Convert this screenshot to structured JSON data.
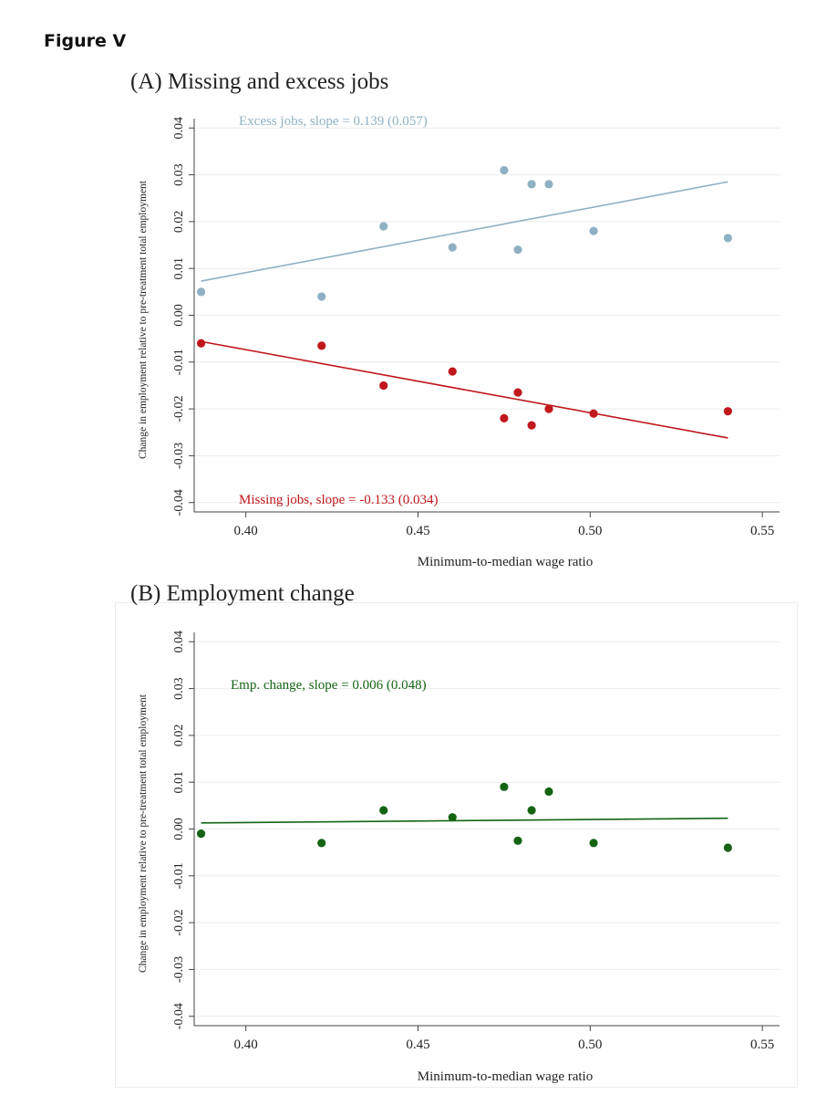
{
  "figure_label": "Figure V",
  "chart_data": [
    {
      "type": "scatter",
      "title": "(A) Missing and excess jobs",
      "xlabel": "Minimum-to-median wage ratio",
      "ylabel": "Change in employment relative to pre-treatment total employment",
      "xlim": [
        0.385,
        0.555
      ],
      "ylim": [
        -0.042,
        0.042
      ],
      "xticks": [
        0.4,
        0.45,
        0.5,
        0.55
      ],
      "xtick_labels": [
        "0.40",
        "0.45",
        "0.50",
        "0.55"
      ],
      "yticks": [
        -0.04,
        -0.03,
        -0.02,
        -0.01,
        0.0,
        0.01,
        0.02,
        0.03,
        0.04
      ],
      "ytick_labels": [
        "-0.04",
        "-0.03",
        "-0.02",
        "-0.01",
        "0.00",
        "0.01",
        "0.02",
        "0.03",
        "0.04"
      ],
      "grid": true,
      "series": [
        {
          "annotation": "Excess jobs, slope =  0.139 (0.057)",
          "color": "#8fb0c4",
          "x": [
            0.387,
            0.422,
            0.44,
            0.46,
            0.475,
            0.479,
            0.483,
            0.488,
            0.501,
            0.54
          ],
          "y": [
            0.005,
            0.004,
            0.019,
            0.0145,
            0.031,
            0.014,
            0.028,
            0.028,
            0.018,
            0.0165
          ],
          "fit": {
            "x": [
              0.387,
              0.54
            ],
            "y": [
              0.0073,
              0.0285
            ]
          }
        },
        {
          "annotation": "Missing jobs, slope =  -0.133 (0.034)",
          "color": "#c0181c",
          "x": [
            0.387,
            0.422,
            0.44,
            0.46,
            0.475,
            0.479,
            0.483,
            0.488,
            0.501,
            0.54
          ],
          "y": [
            -0.006,
            -0.0065,
            -0.015,
            -0.012,
            -0.022,
            -0.0165,
            -0.0235,
            -0.02,
            -0.021,
            -0.0205
          ],
          "fit": {
            "x": [
              0.387,
              0.54
            ],
            "y": [
              -0.0056,
              -0.0262
            ]
          }
        }
      ]
    },
    {
      "type": "scatter",
      "title": "(B) Employment change",
      "xlabel": "Minimum-to-median wage ratio",
      "ylabel": "Change in employment relative to pre-treatment total employment",
      "xlim": [
        0.385,
        0.555
      ],
      "ylim": [
        -0.042,
        0.042
      ],
      "xticks": [
        0.4,
        0.45,
        0.5,
        0.55
      ],
      "xtick_labels": [
        "0.40",
        "0.45",
        "0.50",
        "0.55"
      ],
      "yticks": [
        -0.04,
        -0.03,
        -0.02,
        -0.01,
        0.0,
        0.01,
        0.02,
        0.03,
        0.04
      ],
      "ytick_labels": [
        "-0.04",
        "-0.03",
        "-0.02",
        "-0.01",
        "0.00",
        "0.01",
        "0.02",
        "0.03",
        "0.04"
      ],
      "grid": true,
      "series": [
        {
          "annotation": "Emp. change, slope =  0.006 (0.048)",
          "color": "#146414",
          "x": [
            0.387,
            0.422,
            0.44,
            0.46,
            0.475,
            0.479,
            0.483,
            0.488,
            0.501,
            0.54
          ],
          "y": [
            -0.001,
            -0.003,
            0.004,
            0.0025,
            0.009,
            -0.0025,
            0.004,
            0.008,
            -0.003,
            -0.004
          ],
          "fit": {
            "x": [
              0.387,
              0.54
            ],
            "y": [
              0.0013,
              0.0023
            ]
          }
        }
      ]
    }
  ]
}
